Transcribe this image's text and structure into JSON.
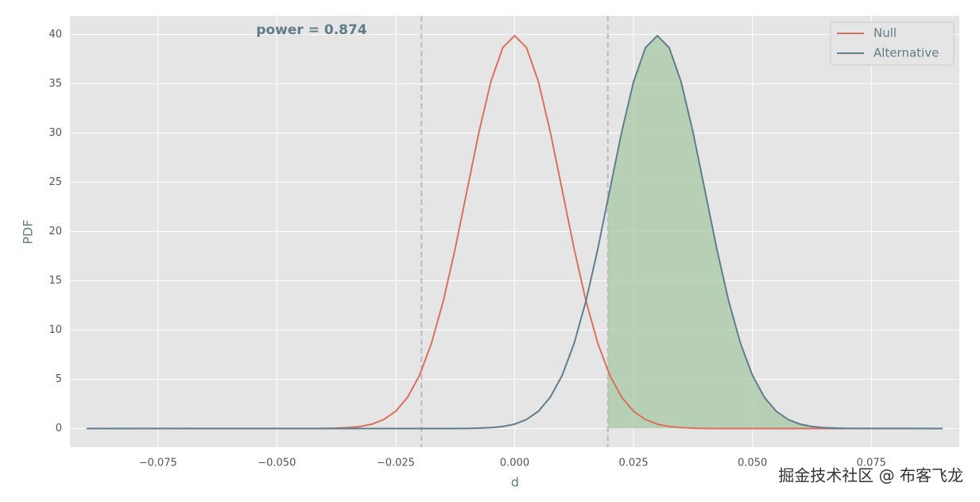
{
  "chart_data": {
    "type": "line",
    "annotation": "power = 0.874",
    "xlabel": "d",
    "ylabel": "PDF",
    "watermark": "掘金技术社区 @ 布客飞龙",
    "x": [
      -0.09,
      -0.04,
      -0.0375,
      -0.035,
      -0.0325,
      -0.03,
      -0.0275,
      -0.025,
      -0.0225,
      -0.02,
      -0.0175,
      -0.015,
      -0.0125,
      -0.01,
      -0.0075,
      -0.005,
      -0.0025,
      0,
      0.0025,
      0.005,
      0.0075,
      0.01,
      0.0125,
      0.015,
      0.0175,
      0.02,
      0.0225,
      0.025,
      0.0275,
      0.03,
      0.0325,
      0.035,
      0.0375,
      0.04,
      0.0425,
      0.045,
      0.0475,
      0.05,
      0.0525,
      0.055,
      0.0575,
      0.06,
      0.0625,
      0.065,
      0.0675,
      0.07,
      0.09
    ],
    "series": [
      {
        "name": "Null",
        "color": "#d9715c",
        "values": [
          0,
          0.01,
          0.04,
          0.09,
          0.2,
          0.44,
          0.91,
          1.75,
          3.18,
          5.4,
          8.63,
          12.95,
          18.26,
          24.2,
          30.11,
          35.21,
          38.67,
          39.89,
          38.67,
          35.21,
          30.11,
          24.2,
          18.26,
          12.95,
          8.63,
          5.4,
          3.18,
          1.75,
          0.91,
          0.44,
          0.2,
          0.09,
          0.04,
          0.01,
          0,
          0,
          0,
          0,
          0,
          0,
          0,
          0,
          0,
          0,
          0,
          0,
          0
        ]
      },
      {
        "name": "Alternative",
        "color": "#5e7e8d",
        "values": [
          0,
          0,
          0,
          0,
          0,
          0,
          0,
          0,
          0,
          0,
          0,
          0,
          0,
          0.01,
          0.04,
          0.09,
          0.2,
          0.44,
          0.91,
          1.75,
          3.18,
          5.4,
          8.63,
          12.95,
          18.26,
          24.2,
          30.11,
          35.21,
          38.67,
          39.89,
          38.67,
          35.21,
          30.11,
          24.2,
          18.26,
          12.95,
          8.63,
          5.4,
          3.18,
          1.75,
          0.91,
          0.44,
          0.2,
          0.09,
          0.04,
          0.01,
          0
        ]
      }
    ],
    "critical_values": [
      -0.0196,
      0.0196
    ],
    "shade_color": "#a7c7a3",
    "xlim": [
      -0.0935,
      0.0935
    ],
    "ylim": [
      -1.9,
      41.9
    ],
    "xticks": [
      {
        "value": -0.075,
        "label": "−0.075"
      },
      {
        "value": -0.05,
        "label": "−0.050"
      },
      {
        "value": -0.025,
        "label": "−0.025"
      },
      {
        "value": 0,
        "label": "0.000"
      },
      {
        "value": 0.025,
        "label": "0.025"
      },
      {
        "value": 0.05,
        "label": "0.050"
      },
      {
        "value": 0.075,
        "label": "0.075"
      }
    ],
    "yticks": [
      0,
      5,
      10,
      15,
      20,
      25,
      30,
      35,
      40
    ],
    "grid": true,
    "legend": "upper right"
  }
}
